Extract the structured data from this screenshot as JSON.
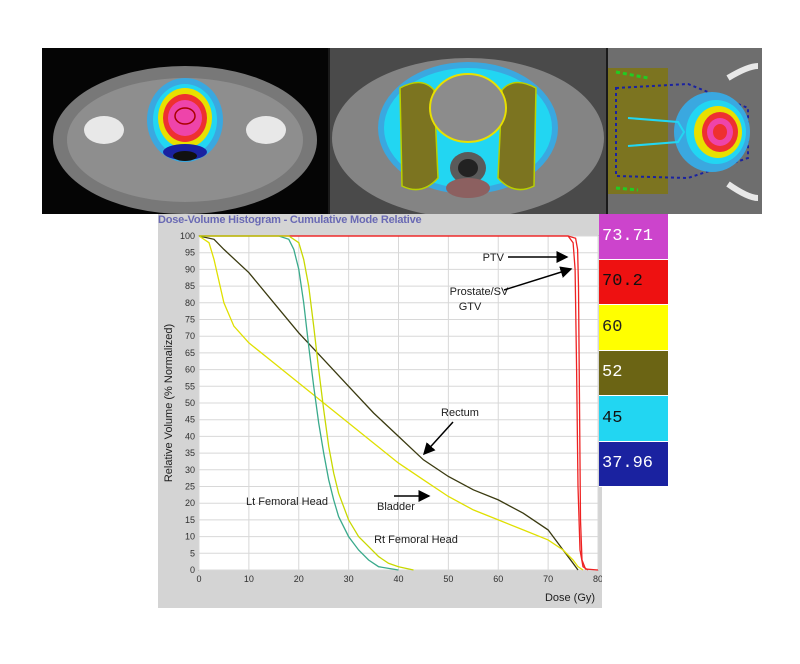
{
  "chart_data": {
    "type": "line",
    "title": "Dose-Volume Histogram - Cumulative Mode Relative",
    "xlabel": "Dose (Gy)",
    "ylabel": "Relative Volume (% Normalized)",
    "xlim": [
      0,
      80
    ],
    "ylim": [
      0,
      100
    ],
    "xticks": [
      "0",
      "10",
      "20",
      "30",
      "40",
      "50",
      "60",
      "70",
      "80"
    ],
    "yticks": [
      "0",
      "5",
      "10",
      "15",
      "20",
      "25",
      "30",
      "35",
      "40",
      "45",
      "50",
      "55",
      "60",
      "65",
      "70",
      "75",
      "80",
      "85",
      "90",
      "95",
      "100"
    ],
    "grid": true,
    "series": [
      {
        "name": "PTV",
        "color": "#ee2222",
        "points": [
          [
            0,
            100
          ],
          [
            74,
            100
          ],
          [
            75.5,
            99.3
          ],
          [
            75.9,
            96
          ],
          [
            76.1,
            85
          ],
          [
            76.3,
            50
          ],
          [
            76.5,
            15
          ],
          [
            76.8,
            3
          ],
          [
            77.5,
            0.3
          ],
          [
            80,
            0
          ]
        ]
      },
      {
        "name": "Prostate/SV GTV",
        "color": "#ee2222",
        "points": [
          [
            0,
            100
          ],
          [
            74,
            100
          ],
          [
            75,
            98
          ],
          [
            75.4,
            90
          ],
          [
            75.7,
            60
          ],
          [
            76,
            25
          ],
          [
            76.4,
            6
          ],
          [
            77,
            1
          ],
          [
            78,
            0
          ]
        ]
      },
      {
        "name": "Rectum",
        "color": "#3a3a10",
        "points": [
          [
            0,
            100
          ],
          [
            3,
            99
          ],
          [
            5,
            96
          ],
          [
            10,
            89
          ],
          [
            15,
            80
          ],
          [
            20,
            71
          ],
          [
            25,
            63
          ],
          [
            30,
            55
          ],
          [
            35,
            47
          ],
          [
            40,
            40
          ],
          [
            45,
            33
          ],
          [
            50,
            28
          ],
          [
            55,
            24
          ],
          [
            60,
            21
          ],
          [
            65,
            17
          ],
          [
            70,
            12
          ],
          [
            73,
            6
          ],
          [
            75,
            2
          ],
          [
            76,
            0
          ]
        ]
      },
      {
        "name": "Bladder",
        "color": "#e0e000",
        "points": [
          [
            0,
            100
          ],
          [
            2,
            98
          ],
          [
            3,
            93
          ],
          [
            5,
            80
          ],
          [
            7,
            73
          ],
          [
            10,
            68
          ],
          [
            15,
            62
          ],
          [
            20,
            56
          ],
          [
            25,
            50
          ],
          [
            30,
            44
          ],
          [
            35,
            38
          ],
          [
            40,
            32
          ],
          [
            45,
            27
          ],
          [
            50,
            22
          ],
          [
            55,
            18
          ],
          [
            60,
            15
          ],
          [
            65,
            12
          ],
          [
            70,
            9
          ],
          [
            73,
            6
          ],
          [
            75,
            3
          ],
          [
            76,
            1
          ],
          [
            77,
            0
          ]
        ]
      },
      {
        "name": "Lt Femoral Head",
        "color": "#3aaa8c",
        "points": [
          [
            0,
            100
          ],
          [
            16,
            100
          ],
          [
            18,
            99
          ],
          [
            19,
            96
          ],
          [
            20,
            90
          ],
          [
            21,
            80
          ],
          [
            22,
            67
          ],
          [
            23,
            55
          ],
          [
            24,
            44
          ],
          [
            25,
            35
          ],
          [
            26,
            27
          ],
          [
            27,
            21
          ],
          [
            28,
            16
          ],
          [
            30,
            10
          ],
          [
            32,
            6
          ],
          [
            34,
            3
          ],
          [
            36,
            1
          ],
          [
            40,
            0
          ]
        ]
      },
      {
        "name": "Rt Femoral Head",
        "color": "#c8d800",
        "points": [
          [
            0,
            100
          ],
          [
            18,
            100
          ],
          [
            20,
            98
          ],
          [
            21,
            93
          ],
          [
            22,
            85
          ],
          [
            23,
            73
          ],
          [
            24,
            60
          ],
          [
            25,
            48
          ],
          [
            26,
            37
          ],
          [
            27,
            29
          ],
          [
            28,
            23
          ],
          [
            30,
            15
          ],
          [
            32,
            10
          ],
          [
            34,
            7
          ],
          [
            36,
            4
          ],
          [
            38,
            2
          ],
          [
            40,
            1
          ],
          [
            43,
            0
          ]
        ]
      }
    ],
    "annotations": [
      "PTV",
      "Prostate/SV",
      "GTV",
      "Rectum",
      "Bladder",
      "Lt Femoral Head",
      "Rt Femoral Head"
    ]
  },
  "legend": [
    {
      "label": "73.71",
      "bg": "#cc44cc",
      "fg": "#ffffff"
    },
    {
      "label": "70.2",
      "bg": "#ee1111",
      "fg": "#111111"
    },
    {
      "label": "60",
      "bg": "#ffff00",
      "fg": "#222222"
    },
    {
      "label": "52",
      "bg": "#6b6414",
      "fg": "#ffffff"
    },
    {
      "label": "45",
      "bg": "#22d6f2",
      "fg": "#111111"
    },
    {
      "label": "37.96",
      "bg": "#1a22a0",
      "fg": "#ffffff"
    }
  ]
}
